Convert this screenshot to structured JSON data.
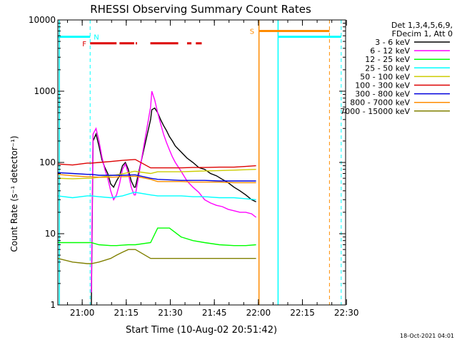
{
  "chart_data": {
    "type": "line",
    "title": "RHESSI Observing Summary Count Rates",
    "xlabel": "Start Time (10-Aug-02 20:51:42)",
    "ylabel": "Count Rate (s⁻¹ detector⁻¹)",
    "yscale": "log",
    "ylim": [
      1,
      10000
    ],
    "xlim_minutes": [
      0,
      98
    ],
    "x_ticks": [
      "21:00",
      "21:15",
      "21:30",
      "21:45",
      "22:00",
      "22:15",
      "22:30"
    ],
    "y_ticks": [
      "1",
      "10",
      "100",
      "1000",
      "10000"
    ],
    "timestamp": "18-Oct-2021 04:01",
    "legend": {
      "header": [
        "Det 1,3,4,5,6,9,",
        "FDecim 1, Att 0"
      ],
      "position": "right"
    },
    "flags": {
      "N_label": "N",
      "F_label": "F",
      "S_label": "S",
      "N_color": "#00ffff",
      "F_color": "#dd0000",
      "S_color": "#ff8c00",
      "N_level": 5800,
      "S_level": 7000,
      "F_segments": [
        [
          11,
          20
        ],
        [
          21,
          26
        ],
        [
          26.5,
          27
        ],
        [
          31.5,
          41
        ],
        [
          44,
          45.5
        ],
        [
          47,
          49
        ]
      ],
      "night_boundaries_dashed": [
        11,
        96.5
      ],
      "day_boundaries_solid": [
        0.5,
        75
      ],
      "saa_solid": 68.5,
      "saa_dashed": 92.5
    },
    "series": [
      {
        "name": "3 - 6 keV",
        "color": "#000000",
        "x": [
          11.4,
          12,
          13,
          14,
          15,
          16,
          17,
          18,
          19,
          20,
          21,
          22,
          23,
          24,
          25,
          26,
          26.4,
          31.6,
          32,
          33,
          34,
          35,
          36,
          37,
          38,
          39,
          40,
          42,
          44,
          46,
          48,
          50,
          52,
          54,
          56,
          58,
          60,
          62,
          64,
          66,
          67.5
        ],
        "y": [
          1,
          200,
          250,
          170,
          110,
          85,
          70,
          50,
          45,
          55,
          65,
          90,
          100,
          80,
          55,
          45,
          45,
          400,
          550,
          580,
          500,
          400,
          330,
          280,
          230,
          200,
          170,
          140,
          115,
          100,
          85,
          80,
          70,
          65,
          58,
          52,
          45,
          40,
          35,
          30,
          28
        ]
      },
      {
        "name": "6 - 12 keV",
        "color": "#ff00ff",
        "x": [
          11.4,
          12,
          13,
          14,
          15,
          16,
          17,
          18,
          19,
          20,
          21,
          22,
          23,
          24,
          25,
          26,
          26.4,
          31.6,
          32,
          33,
          34,
          35,
          36,
          37,
          38,
          39,
          40,
          42,
          44,
          46,
          48,
          50,
          52,
          54,
          56,
          58,
          60,
          62,
          64,
          66,
          67.5
        ],
        "y": [
          1.5,
          250,
          300,
          200,
          120,
          80,
          60,
          40,
          30,
          35,
          50,
          80,
          95,
          70,
          45,
          35,
          35,
          600,
          1000,
          750,
          500,
          350,
          250,
          190,
          150,
          120,
          100,
          75,
          55,
          45,
          38,
          30,
          27,
          25,
          24,
          22,
          21,
          20,
          20,
          19,
          17
        ]
      },
      {
        "name": "12 - 25 keV",
        "color": "#00ff00",
        "x": [
          0,
          5,
          10,
          11.4,
          14,
          18,
          20,
          22,
          24,
          26,
          26.4,
          31.6,
          34,
          38,
          42,
          46,
          50,
          55,
          60,
          64,
          67.5
        ],
        "y": [
          7.5,
          7.5,
          7.5,
          7.5,
          7,
          6.8,
          6.8,
          6.9,
          7,
          7,
          7,
          7.5,
          12,
          12,
          9,
          8,
          7.5,
          7,
          6.8,
          6.8,
          7
        ]
      },
      {
        "name": "25 - 50 keV",
        "color": "#00ffff",
        "x": [
          0,
          5,
          10,
          11.4,
          14,
          18,
          22,
          26,
          26.4,
          31.6,
          34,
          38,
          42,
          46,
          50,
          55,
          60,
          64,
          67.5
        ],
        "y": [
          34,
          32,
          34,
          34,
          33,
          32,
          34,
          38,
          38,
          35,
          34,
          34,
          34,
          33,
          33,
          32,
          32,
          31,
          30
        ]
      },
      {
        "name": "50 - 100 keV",
        "color": "#cccc00",
        "x": [
          0,
          5,
          10,
          11.4,
          14,
          18,
          22,
          26,
          26.4,
          31.6,
          34,
          38,
          42,
          46,
          50,
          55,
          60,
          64,
          67.5
        ],
        "y": [
          60,
          59,
          60,
          60,
          62,
          65,
          69,
          75,
          75,
          70,
          74,
          74,
          74,
          75,
          76,
          77,
          78,
          79,
          80
        ]
      },
      {
        "name": "100 - 300 keV",
        "color": "#dd0000",
        "x": [
          0,
          5,
          10,
          11.4,
          14,
          18,
          22,
          26,
          26.4,
          31.6,
          34,
          38,
          42,
          46,
          50,
          55,
          60,
          64,
          67.5
        ],
        "y": [
          95,
          92,
          98,
          98,
          100,
          103,
          107,
          110,
          110,
          84,
          84,
          84,
          84,
          85,
          85,
          86,
          86,
          88,
          90
        ]
      },
      {
        "name": "300 - 800 keV",
        "color": "#0000dd",
        "x": [
          0,
          5,
          10,
          11.4,
          14,
          18,
          22,
          26,
          26.4,
          31.6,
          34,
          38,
          42,
          46,
          50,
          55,
          60,
          64,
          67.5
        ],
        "y": [
          72,
          70,
          68,
          68,
          66,
          66,
          66,
          67,
          67,
          60,
          58,
          57,
          56,
          56,
          56,
          55,
          55,
          55,
          55
        ]
      },
      {
        "name": "800 - 7000 keV",
        "color": "#ff8c00",
        "x": [
          0,
          5,
          10,
          11.4,
          14,
          18,
          22,
          26,
          26.4,
          31.6,
          34,
          38,
          42,
          46,
          50,
          55,
          60,
          64,
          67.5
        ],
        "y": [
          68,
          65,
          63,
          63,
          62,
          62,
          63,
          64,
          64,
          58,
          54,
          54,
          54,
          53,
          53,
          53,
          52,
          52,
          52
        ]
      },
      {
        "name": "7000 - 15000 keV",
        "color": "#808000",
        "x": [
          0,
          5,
          10,
          11.4,
          14,
          18,
          20,
          22,
          24,
          26,
          26.4,
          31.6,
          34,
          38,
          42,
          46,
          50,
          55,
          60,
          64,
          67.5
        ],
        "y": [
          4.5,
          4,
          3.8,
          3.8,
          4,
          4.5,
          5,
          5.5,
          6,
          6,
          6,
          4.5,
          4.5,
          4.5,
          4.5,
          4.5,
          4.5,
          4.5,
          4.5,
          4.5,
          4.5
        ]
      }
    ]
  }
}
